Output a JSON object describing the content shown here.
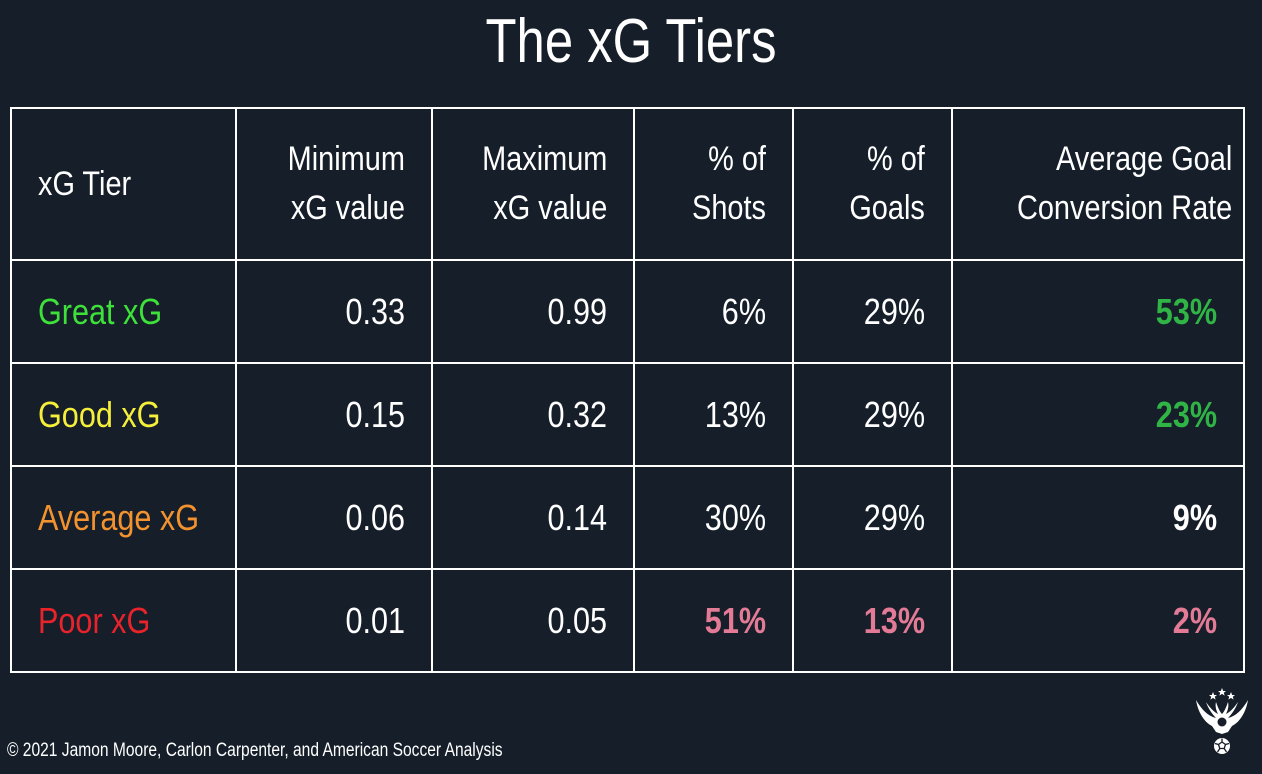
{
  "chart_data": {
    "type": "table",
    "title": "The xG Tiers",
    "columns": [
      [
        "xG Tier"
      ],
      [
        "Minimum",
        "xG value"
      ],
      [
        "Maximum",
        "xG value"
      ],
      [
        "% of",
        "Shots"
      ],
      [
        "% of",
        "Goals"
      ],
      [
        "Average Goal",
        "Conversion Rate"
      ]
    ],
    "rows": [
      {
        "tier": "Great xG",
        "min": "0.33",
        "max": "0.99",
        "shots": "6%",
        "goals": "29%",
        "conversion": "53%"
      },
      {
        "tier": "Good xG",
        "min": "0.15",
        "max": "0.32",
        "shots": "13%",
        "goals": "29%",
        "conversion": "23%"
      },
      {
        "tier": "Average xG",
        "min": "0.06",
        "max": "0.14",
        "shots": "30%",
        "goals": "29%",
        "conversion": "9%"
      },
      {
        "tier": "Poor xG",
        "min": "0.01",
        "max": "0.05",
        "shots": "51%",
        "goals": "13%",
        "conversion": "2%"
      }
    ]
  },
  "colors": {
    "background": "#151e29",
    "text": "#ffffff",
    "great_tier": "#3ee13a",
    "good_tier": "#f5ee3a",
    "average_tier": "#f3922e",
    "poor_tier": "#e8232b",
    "highlight_green": "#30b446",
    "highlight_pink": "#e47b96"
  },
  "row_styles": [
    {
      "tier_color": "#3ee13a",
      "shots_color": "#ffffff",
      "shots_bold": false,
      "goals_color": "#ffffff",
      "goals_bold": false,
      "conversion_color": "#30b446"
    },
    {
      "tier_color": "#f5ee3a",
      "shots_color": "#ffffff",
      "shots_bold": false,
      "goals_color": "#ffffff",
      "goals_bold": false,
      "conversion_color": "#30b446"
    },
    {
      "tier_color": "#f3922e",
      "shots_color": "#ffffff",
      "shots_bold": false,
      "goals_color": "#ffffff",
      "goals_bold": false,
      "conversion_color": "#ffffff"
    },
    {
      "tier_color": "#e8232b",
      "shots_color": "#e47b96",
      "shots_bold": true,
      "goals_color": "#e47b96",
      "goals_bold": true,
      "conversion_color": "#e47b96"
    }
  ],
  "footer": {
    "copyright": "© 2021 Jamon Moore, Carlon Carpenter, and American Soccer Analysis"
  },
  "logo": {
    "icon": "eagle-soccer-ball-logo-icon"
  }
}
